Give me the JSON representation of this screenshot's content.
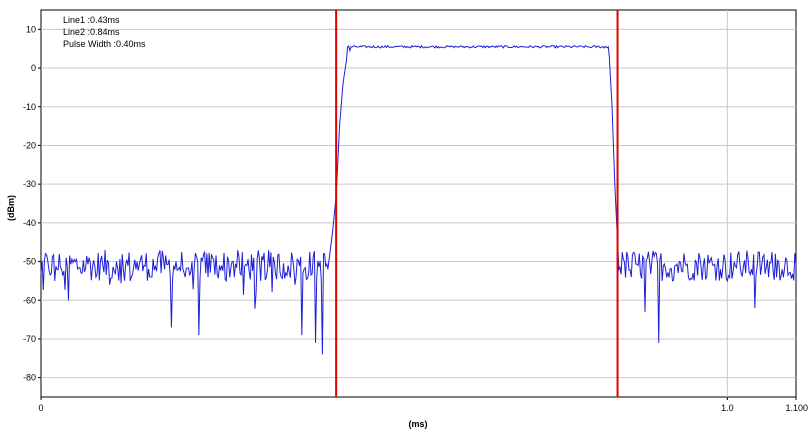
{
  "chart_data": {
    "type": "line",
    "xlabel": "(ms)",
    "ylabel": "(dBm)",
    "xlim": [
      0,
      1.1
    ],
    "ylim": [
      -85,
      15
    ],
    "x_tick_labels": [
      {
        "value": 0,
        "label": "0"
      },
      {
        "value": 1.0,
        "label": "1.0"
      },
      {
        "value": 1.1,
        "label": "1.100"
      }
    ],
    "x_grid": [
      1.0
    ],
    "y_ticks": [
      10,
      0,
      -10,
      -20,
      -30,
      -40,
      -50,
      -60,
      -70,
      -80
    ],
    "grid": true,
    "annotations": [
      "Line1 :0.43ms",
      "Line2 :0.84ms",
      "Pulse Width :0.40ms"
    ],
    "markers": [
      {
        "name": "Line1",
        "x": 0.43,
        "color": "#e00000"
      },
      {
        "name": "Line2",
        "x": 0.84,
        "color": "#e00000"
      }
    ],
    "series": [
      {
        "color": "#1f1fd6",
        "noise_floor": -51,
        "pulse_level": 5.5,
        "rise_start": 0.418,
        "rise_end": 0.445,
        "fall_start": 0.828,
        "fall_end": 0.842,
        "points": [
          [
            0.0,
            -53
          ],
          [
            0.01,
            -50
          ],
          [
            0.02,
            -55
          ],
          [
            0.03,
            -52
          ],
          [
            0.04,
            -60
          ],
          [
            0.05,
            -50
          ],
          [
            0.06,
            -53
          ],
          [
            0.07,
            -49
          ],
          [
            0.08,
            -54
          ],
          [
            0.09,
            -51
          ],
          [
            0.1,
            -56
          ],
          [
            0.11,
            -50
          ],
          [
            0.12,
            -52
          ],
          [
            0.13,
            -55
          ],
          [
            0.14,
            -50
          ],
          [
            0.15,
            -51
          ],
          [
            0.16,
            -54
          ],
          [
            0.17,
            -49
          ],
          [
            0.18,
            -52
          ],
          [
            0.19,
            -67
          ],
          [
            0.2,
            -52
          ],
          [
            0.21,
            -54
          ],
          [
            0.22,
            -50
          ],
          [
            0.23,
            -69
          ],
          [
            0.24,
            -53
          ],
          [
            0.25,
            -49
          ],
          [
            0.26,
            -51
          ],
          [
            0.27,
            -55
          ],
          [
            0.28,
            -50
          ],
          [
            0.29,
            -53
          ],
          [
            0.3,
            -51
          ],
          [
            0.31,
            -49
          ],
          [
            0.32,
            -55
          ],
          [
            0.33,
            -52
          ],
          [
            0.34,
            -50
          ],
          [
            0.35,
            -54
          ],
          [
            0.36,
            -51
          ],
          [
            0.37,
            -56
          ],
          [
            0.38,
            -69
          ],
          [
            0.39,
            -53
          ],
          [
            0.4,
            -71
          ],
          [
            0.41,
            -74
          ],
          [
            0.418,
            -52
          ],
          [
            0.425,
            -42
          ],
          [
            0.43,
            -33
          ],
          [
            0.435,
            -15
          ],
          [
            0.44,
            -4
          ],
          [
            0.445,
            2
          ],
          [
            0.45,
            4.5
          ],
          [
            0.46,
            5.5
          ],
          [
            0.5,
            5.4
          ],
          [
            0.6,
            5.6
          ],
          [
            0.7,
            5.5
          ],
          [
            0.8,
            5.3
          ],
          [
            0.82,
            5.2
          ],
          [
            0.828,
            3
          ],
          [
            0.832,
            -10
          ],
          [
            0.836,
            -30
          ],
          [
            0.84,
            -45
          ],
          [
            0.842,
            -52
          ],
          [
            0.85,
            -50
          ],
          [
            0.86,
            -54
          ],
          [
            0.87,
            -51
          ],
          [
            0.88,
            -63
          ],
          [
            0.89,
            -50
          ],
          [
            0.9,
            -71
          ],
          [
            0.91,
            -52
          ],
          [
            0.92,
            -55
          ],
          [
            0.93,
            -50
          ],
          [
            0.94,
            -51
          ],
          [
            0.95,
            -53
          ],
          [
            0.96,
            -49
          ],
          [
            0.97,
            -54
          ],
          [
            0.98,
            -51
          ],
          [
            0.99,
            -52
          ],
          [
            1.0,
            -55
          ],
          [
            1.01,
            -50
          ],
          [
            1.02,
            -53
          ],
          [
            1.03,
            -49
          ],
          [
            1.04,
            -62
          ],
          [
            1.05,
            -51
          ],
          [
            1.06,
            -54
          ],
          [
            1.07,
            -48
          ],
          [
            1.08,
            -52
          ],
          [
            1.09,
            -53
          ],
          [
            1.1,
            -51
          ]
        ]
      }
    ]
  }
}
